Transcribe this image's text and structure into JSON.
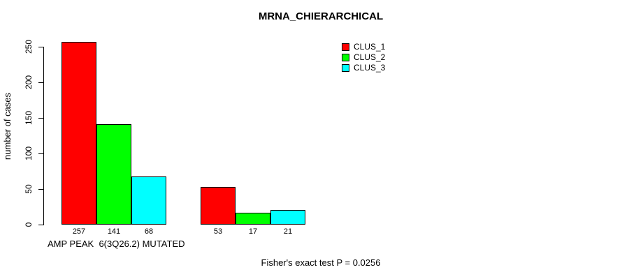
{
  "page": {
    "background": "#ffffff"
  },
  "chart_data": {
    "type": "bar",
    "title": "MRNA_CHIERARCHICAL",
    "ylabel": "number of cases",
    "xlabel": "AMP PEAK  6(3Q26.2) MUTATED",
    "footer": "Fisher's exact test P = 0.0256",
    "ylim": [
      0,
      250
    ],
    "yticks": [
      0,
      50,
      100,
      150,
      200,
      250
    ],
    "grid": false,
    "legend_position": "top-right",
    "bar_value_labels_shown": true,
    "series": [
      {
        "name": "CLUS_1",
        "color": "#ff0000",
        "values": [
          257,
          53
        ]
      },
      {
        "name": "CLUS_2",
        "color": "#00ff00",
        "values": [
          141,
          17
        ]
      },
      {
        "name": "CLUS_3",
        "color": "#00ffff",
        "values": [
          68,
          21
        ]
      }
    ]
  }
}
